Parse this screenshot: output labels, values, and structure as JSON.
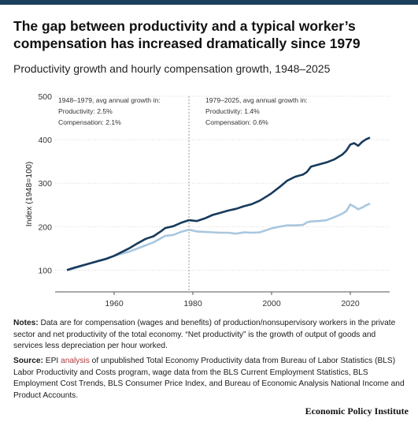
{
  "title": "The gap between productivity and a typical worker’s compensation has increased dramatically since 1979",
  "subtitle": "Productivity growth and hourly compensation growth, 1948–2025",
  "annotations": {
    "left": {
      "heading": "1948–1979, avg annual growth in:",
      "productivity": "Productivity: 2.5%",
      "compensation": "Compensation: 2.1%"
    },
    "right": {
      "heading": "1979–2025, avg annual growth in:",
      "productivity": "Productivity: 1.4%",
      "compensation": "Compensation: 0.6%"
    }
  },
  "notes": {
    "label": "Notes:",
    "text": " Data are for compensation (wages and benefits) of production/nonsupervisory workers in the private sector and net productivity of the total economy. “Net productivity” is the growth of output of goods and services less depreciation per hour worked."
  },
  "source": {
    "label": "Source:",
    "pre": " EPI ",
    "link": "analysis",
    "text": " of unpublished Total Economy Productivity data from Bureau of Labor Statistics (BLS) Labor Productivity and Costs program, wage data from the BLS Current Employment Statistics, BLS Employment Cost Trends, BLS Consumer Price Index, and Bureau of Economic Analysis National Income and Product Accounts."
  },
  "brand": "Economic Policy Institute",
  "colors": {
    "productivity": "#163a5c",
    "compensation": "#a9c7df",
    "accent": "#1c3f5c",
    "grid": "#d8d8d8"
  },
  "chart_data": {
    "type": "line",
    "title": "",
    "xlabel": "",
    "ylabel": "Index (1948=100)",
    "xlim": [
      1945,
      2030
    ],
    "ylim": [
      50,
      500
    ],
    "x_ticks": [
      1960,
      1980,
      2000,
      2020
    ],
    "y_ticks": [
      100,
      200,
      300,
      400,
      500
    ],
    "grid": true,
    "reference_line_x": 1979,
    "series": [
      {
        "name": "",
        "points": [
          [
            1948,
            100
          ],
          [
            1950,
            106
          ],
          [
            1952,
            111
          ],
          [
            1954,
            116
          ],
          [
            1956,
            121
          ],
          [
            1958,
            126
          ],
          [
            1960,
            133
          ],
          [
            1962,
            142
          ],
          [
            1964,
            151
          ],
          [
            1966,
            162
          ],
          [
            1968,
            172
          ],
          [
            1970,
            178
          ],
          [
            1972,
            190
          ],
          [
            1973,
            197
          ],
          [
            1975,
            201
          ],
          [
            1977,
            209
          ],
          [
            1979,
            215
          ],
          [
            1981,
            213
          ],
          [
            1983,
            219
          ],
          [
            1985,
            227
          ],
          [
            1987,
            232
          ],
          [
            1989,
            237
          ],
          [
            1991,
            241
          ],
          [
            1993,
            247
          ],
          [
            1995,
            252
          ],
          [
            1997,
            260
          ],
          [
            1999,
            271
          ],
          [
            2000,
            277
          ],
          [
            2002,
            291
          ],
          [
            2004,
            306
          ],
          [
            2006,
            315
          ],
          [
            2008,
            320
          ],
          [
            2009,
            326
          ],
          [
            2010,
            338
          ],
          [
            2012,
            343
          ],
          [
            2014,
            348
          ],
          [
            2016,
            355
          ],
          [
            2018,
            366
          ],
          [
            2019,
            375
          ],
          [
            2020,
            389
          ],
          [
            2021,
            392
          ],
          [
            2022,
            386
          ],
          [
            2023,
            395
          ],
          [
            2024,
            401
          ],
          [
            2025,
            405
          ]
        ]
      },
      {
        "name": "",
        "points": [
          [
            1948,
            100
          ],
          [
            1950,
            104
          ],
          [
            1952,
            110
          ],
          [
            1954,
            116
          ],
          [
            1956,
            122
          ],
          [
            1958,
            127
          ],
          [
            1960,
            133
          ],
          [
            1962,
            138
          ],
          [
            1964,
            143
          ],
          [
            1966,
            150
          ],
          [
            1968,
            157
          ],
          [
            1970,
            164
          ],
          [
            1972,
            174
          ],
          [
            1973,
            179
          ],
          [
            1975,
            181
          ],
          [
            1977,
            188
          ],
          [
            1979,
            193
          ],
          [
            1981,
            189
          ],
          [
            1983,
            188
          ],
          [
            1985,
            187
          ],
          [
            1987,
            186
          ],
          [
            1989,
            186
          ],
          [
            1991,
            184
          ],
          [
            1993,
            187
          ],
          [
            1995,
            186
          ],
          [
            1997,
            187
          ],
          [
            1999,
            193
          ],
          [
            2000,
            196
          ],
          [
            2002,
            200
          ],
          [
            2004,
            203
          ],
          [
            2006,
            203
          ],
          [
            2008,
            204
          ],
          [
            2009,
            210
          ],
          [
            2010,
            212
          ],
          [
            2012,
            213
          ],
          [
            2014,
            215
          ],
          [
            2016,
            222
          ],
          [
            2018,
            230
          ],
          [
            2019,
            236
          ],
          [
            2020,
            251
          ],
          [
            2021,
            246
          ],
          [
            2022,
            240
          ],
          [
            2023,
            244
          ],
          [
            2024,
            249
          ],
          [
            2025,
            253
          ]
        ]
      }
    ]
  }
}
